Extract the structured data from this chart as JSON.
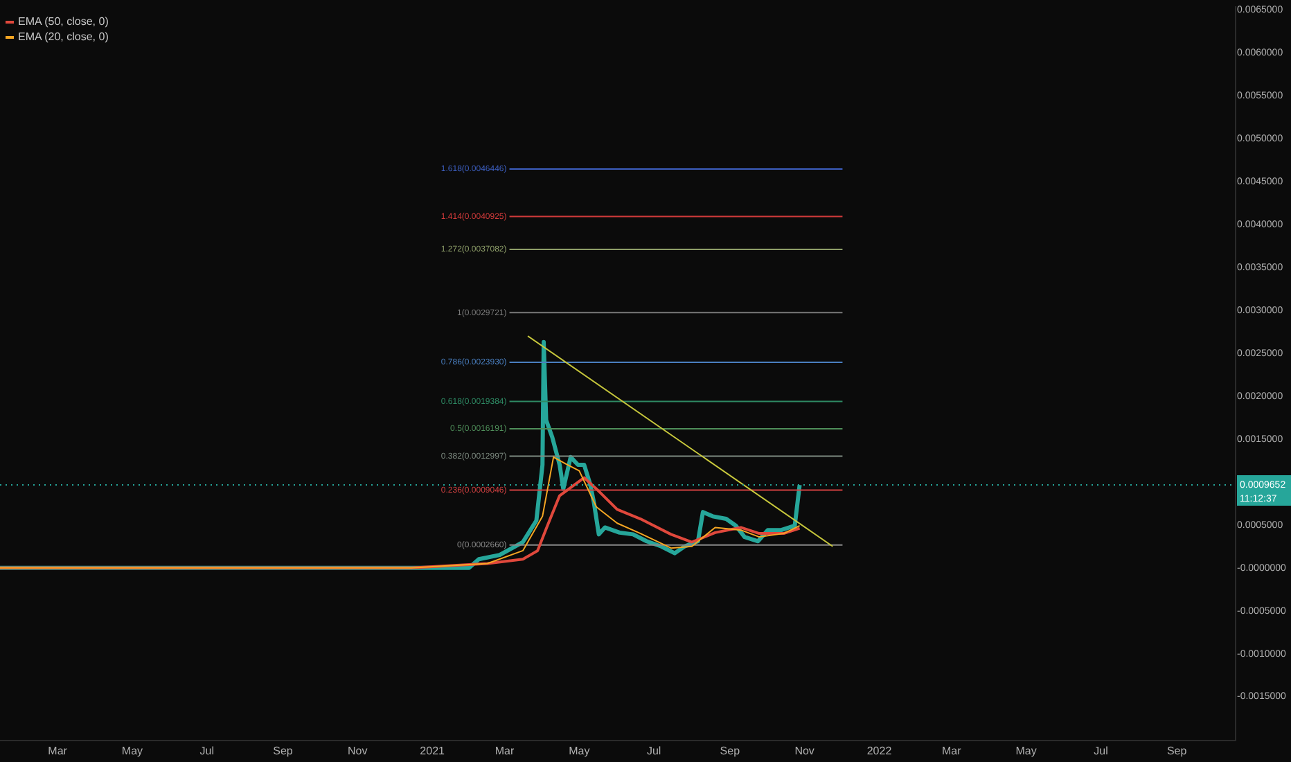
{
  "chart_data": {
    "type": "line",
    "legend": "top left",
    "grid": false,
    "marker": "none",
    "xlim": [
      "2020-01-14",
      "2022-10-19"
    ],
    "xticks": [
      {
        "value": "2020-03-01",
        "label": "Mar"
      },
      {
        "value": "2020-05-01",
        "label": "May"
      },
      {
        "value": "2020-07-01",
        "label": "Jul"
      },
      {
        "value": "2020-09-01",
        "label": "Sep"
      },
      {
        "value": "2020-11-01",
        "label": "Nov"
      },
      {
        "value": "2021-01-01",
        "label": "2021"
      },
      {
        "value": "2021-03-01",
        "label": "Mar"
      },
      {
        "value": "2021-05-01",
        "label": "May"
      },
      {
        "value": "2021-07-01",
        "label": "Jul"
      },
      {
        "value": "2021-09-01",
        "label": "Sep"
      },
      {
        "value": "2021-11-01",
        "label": "Nov"
      },
      {
        "value": "2022-01-01",
        "label": "2022"
      },
      {
        "value": "2022-03-01",
        "label": "Mar"
      },
      {
        "value": "2022-05-01",
        "label": "May"
      },
      {
        "value": "2022-07-01",
        "label": "Jul"
      },
      {
        "value": "2022-09-01",
        "label": "Sep"
      }
    ],
    "ylim": [
      -0.00201,
      0.00653
    ],
    "yticks": [
      {
        "value": 0.0065,
        "label": "0.0065000"
      },
      {
        "value": 0.006,
        "label": "0.0060000"
      },
      {
        "value": 0.0055,
        "label": "0.0055000"
      },
      {
        "value": 0.005,
        "label": "0.0050000"
      },
      {
        "value": 0.0045,
        "label": "0.0045000"
      },
      {
        "value": 0.004,
        "label": "0.0040000"
      },
      {
        "value": 0.0035,
        "label": "0.0035000"
      },
      {
        "value": 0.003,
        "label": "0.0030000"
      },
      {
        "value": 0.0025,
        "label": "0.0025000"
      },
      {
        "value": 0.002,
        "label": "0.0020000"
      },
      {
        "value": 0.0015,
        "label": "0.0015000"
      },
      {
        "value": 0.0005,
        "label": "0.0005000"
      },
      {
        "value": 0,
        "label": "-0.0000000"
      },
      {
        "value": -0.0005,
        "label": "-0.0005000"
      },
      {
        "value": -0.001,
        "label": "-0.0010000"
      },
      {
        "value": -0.0015,
        "label": "-0.0015000"
      }
    ],
    "series": [
      {
        "color": "#26a69a",
        "x": [
          "2020-01-14",
          "2020-02-15",
          "2020-03-15",
          "2020-04-15",
          "2020-05-15",
          "2020-06-15",
          "2020-07-15",
          "2020-08-15",
          "2020-09-15",
          "2020-10-15",
          "2020-11-15",
          "2020-12-15",
          "2021-01-15",
          "2021-01-31",
          "2021-02-08",
          "2021-02-25",
          "2021-03-16",
          "2021-03-27",
          "2021-04-01",
          "2021-04-02",
          "2021-04-04",
          "2021-04-09",
          "2021-04-15",
          "2021-04-18",
          "2021-04-24",
          "2021-04-30",
          "2021-05-05",
          "2021-05-10",
          "2021-05-13",
          "2021-05-17",
          "2021-05-22",
          "2021-06-03",
          "2021-06-14",
          "2021-06-25",
          "2021-07-07",
          "2021-07-18",
          "2021-07-26",
          "2021-08-06",
          "2021-08-10",
          "2021-08-18",
          "2021-08-29",
          "2021-09-06",
          "2021-09-13",
          "2021-09-24",
          "2021-10-02",
          "2021-10-13",
          "2021-10-24",
          "2021-10-28"
        ],
        "values": [
          0,
          0,
          0,
          0,
          0,
          0,
          0,
          0,
          0,
          0,
          0,
          0,
          0,
          0,
          0.0001,
          0.00015,
          0.0003,
          0.00055,
          0.0012,
          0.00263,
          0.00172,
          0.00152,
          0.0012,
          0.00092,
          0.00129,
          0.0012,
          0.0012,
          0.00097,
          0.00076,
          0.00039,
          0.00047,
          0.00041,
          0.00039,
          0.00031,
          0.00025,
          0.00017,
          0.00025,
          0.00031,
          0.00065,
          0.0006,
          0.00057,
          0.00049,
          0.00036,
          0.00031,
          0.00044,
          0.00044,
          0.00049,
          0.0009652
        ]
      },
      {
        "name": "EMA (50, close, 0)",
        "color": "#e0483c",
        "x": [
          "2020-01-14",
          "2020-06-15",
          "2020-12-15",
          "2021-02-15",
          "2021-03-16",
          "2021-03-28",
          "2021-04-05",
          "2021-04-15",
          "2021-05-05",
          "2021-05-15",
          "2021-06-01",
          "2021-06-20",
          "2021-07-15",
          "2021-08-01",
          "2021-08-20",
          "2021-09-10",
          "2021-09-25",
          "2021-10-15",
          "2021-10-28"
        ],
        "values": [
          0,
          0,
          0,
          5e-05,
          0.0001,
          0.0002,
          0.00049,
          0.00084,
          0.00105,
          0.00092,
          0.00068,
          0.00057,
          0.00039,
          0.0003,
          0.00041,
          0.00047,
          0.0004,
          0.0004,
          0.00046
        ]
      },
      {
        "name": "EMA (20, close, 0)",
        "color": "#f5a623",
        "x": [
          "2020-01-14",
          "2020-06-15",
          "2020-12-15",
          "2021-02-15",
          "2021-03-16",
          "2021-04-01",
          "2021-04-10",
          "2021-04-20",
          "2021-05-01",
          "2021-05-15",
          "2021-06-01",
          "2021-06-20",
          "2021-07-15",
          "2021-08-01",
          "2021-08-20",
          "2021-09-10",
          "2021-09-25",
          "2021-10-15",
          "2021-10-28"
        ],
        "values": [
          0,
          0,
          0,
          5e-05,
          0.0002,
          0.0006,
          0.00129,
          0.00121,
          0.00113,
          0.00071,
          0.00052,
          0.0004,
          0.00023,
          0.00025,
          0.00047,
          0.00044,
          0.00036,
          0.0004,
          0.00049
        ]
      },
      {
        "color": "#c8c83c",
        "x": [
          "2021-03-20",
          "2021-11-24"
        ],
        "values": [
          0.0027,
          0.00025
        ]
      },
      {
        "color": "#3d5fc0",
        "x": [
          "2021-03-05",
          "2021-12-02"
        ],
        "values": [
          0.0046446,
          0.0046446
        ]
      },
      {
        "color": "#d03a3a",
        "x": [
          "2021-03-05",
          "2021-12-02"
        ],
        "values": [
          0.0040925,
          0.0040925
        ]
      },
      {
        "color": "#8fa06a",
        "x": [
          "2021-03-05",
          "2021-12-02"
        ],
        "values": [
          0.0037082,
          0.0037082
        ]
      },
      {
        "color": "#7a7a7a",
        "x": [
          "2021-03-05",
          "2021-12-02"
        ],
        "values": [
          0.0029721,
          0.0029721
        ]
      },
      {
        "color": "#4a7fc0",
        "x": [
          "2021-03-05",
          "2021-12-02"
        ],
        "values": [
          0.002393,
          0.002393
        ]
      },
      {
        "color": "#2e8a64",
        "x": [
          "2021-03-05",
          "2021-12-02"
        ],
        "values": [
          0.0019384,
          0.0019384
        ]
      },
      {
        "color": "#4f8f5a",
        "x": [
          "2021-03-05",
          "2021-12-02"
        ],
        "values": [
          0.0016191,
          0.0016191
        ]
      },
      {
        "color": "#7d8a80",
        "x": [
          "2021-03-05",
          "2021-12-02"
        ],
        "values": [
          0.0012997,
          0.0012997
        ]
      },
      {
        "color": "#d04040",
        "x": [
          "2021-03-05",
          "2021-12-02"
        ],
        "values": [
          0.0009046,
          0.0009046
        ]
      },
      {
        "color": "#8a8a8a",
        "x": [
          "2021-03-05",
          "2021-12-02"
        ],
        "values": [
          0.000266,
          0.000266
        ]
      }
    ],
    "ref_lines": [
      {
        "axis": "y",
        "value": 0.0009652,
        "label": "0.0009652",
        "color": "#26a69a",
        "line_style": "dotted"
      }
    ],
    "annotations": [
      {
        "text": "1.618(0.0046446)",
        "x": "2021-03-05",
        "y": 0.0046446
      },
      {
        "text": "1.414(0.0040925)",
        "x": "2021-03-05",
        "y": 0.0040925
      },
      {
        "text": "1.272(0.0037082)",
        "x": "2021-03-05",
        "y": 0.0037082
      },
      {
        "text": "1(0.0029721)",
        "x": "2021-03-05",
        "y": 0.0029721
      },
      {
        "text": "0.786(0.0023930)",
        "x": "2021-03-05",
        "y": 0.002393
      },
      {
        "text": "0.618(0.0019384)",
        "x": "2021-03-05",
        "y": 0.0019384
      },
      {
        "text": "0.5(0.0016191)",
        "x": "2021-03-05",
        "y": 0.0016191
      },
      {
        "text": "0.382(0.0012997)",
        "x": "2021-03-05",
        "y": 0.0012997
      },
      {
        "text": "0.236(0.0009046)",
        "x": "2021-03-05",
        "y": 0.0009046
      },
      {
        "text": "0(0.0002660)",
        "x": "2021-03-05",
        "y": 0.000266
      },
      "11:12:37"
    ]
  }
}
